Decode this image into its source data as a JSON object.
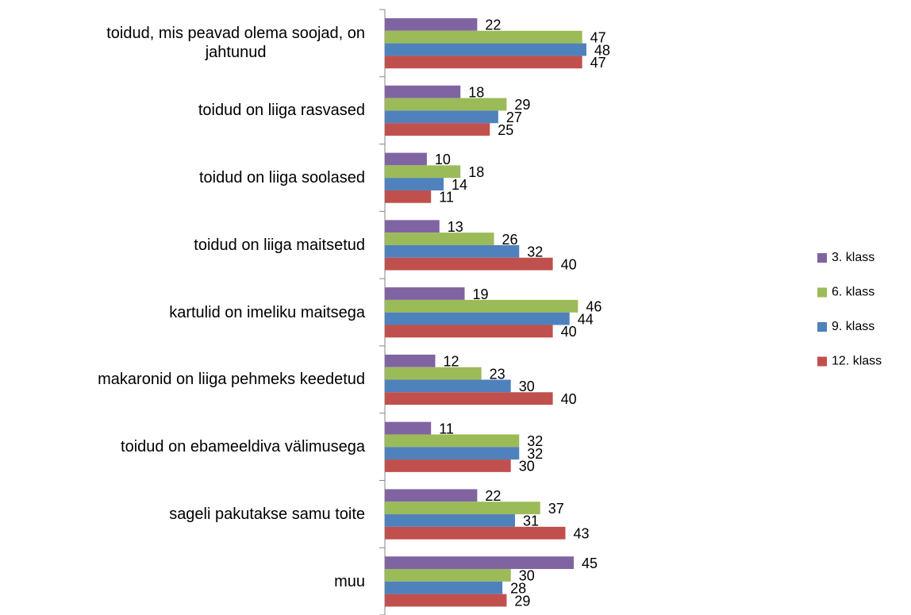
{
  "chart_data": {
    "type": "bar",
    "orientation": "horizontal",
    "categories": [
      "toidud, mis peavad olema soojad, on\njahtunud",
      "toidud on liiga rasvased",
      "toidud on liiga soolased",
      "toidud on liiga maitsetud",
      "kartulid on imeliku maitsega",
      "makaronid on liiga pehmeks keedetud",
      "toidud on ebameeldiva välimusega",
      "sageli pakutakse samu toite",
      "muu"
    ],
    "series": [
      {
        "name": "3. klass",
        "color": "#8064a2",
        "values": [
          22,
          18,
          10,
          13,
          19,
          12,
          11,
          22,
          45
        ]
      },
      {
        "name": "6. klass",
        "color": "#9bbb59",
        "values": [
          47,
          29,
          18,
          26,
          46,
          23,
          32,
          37,
          30
        ]
      },
      {
        "name": "9. klass",
        "color": "#4f81bd",
        "values": [
          48,
          27,
          14,
          32,
          44,
          30,
          32,
          31,
          28
        ]
      },
      {
        "name": "12. klass",
        "color": "#c0504d",
        "values": [
          47,
          25,
          11,
          40,
          40,
          40,
          30,
          43,
          29
        ]
      }
    ],
    "xlim": [
      0,
      100
    ],
    "legend": "right"
  }
}
